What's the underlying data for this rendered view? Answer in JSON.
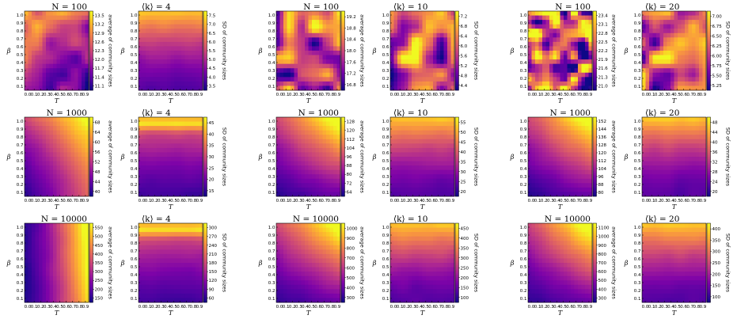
{
  "colormap": "plasma",
  "colors": {
    "low": "#0d0887",
    "mid": "#cc4778",
    "high": "#f0f921",
    "frame": "#000000",
    "background": "#ffffff"
  },
  "chart_data": [
    {
      "type": "heatmap",
      "title_left": "N = 100",
      "title_right": "⟨k⟩ = 4",
      "xlabel": "T",
      "ylabel": "β",
      "x_ticks": [
        "0.0",
        "0.1",
        "0.2",
        "0.3",
        "0.4",
        "0.5",
        "0.6",
        "0.7",
        "0.8",
        "0.9"
      ],
      "y_ticks": [
        "0.1",
        "0.2",
        "0.3",
        "0.4",
        "0.5",
        "0.6",
        "0.7",
        "0.8",
        "0.9",
        "1.0"
      ],
      "panels": [
        {
          "colorbar_label": "average of community sizes",
          "colorbar_ticks": [
            "11.1",
            "11.4",
            "11.7",
            "12.0",
            "12.3",
            "12.6",
            "12.9",
            "13.2",
            "13.5"
          ],
          "pattern": "noisy-high-top-left"
        },
        {
          "colorbar_label": "SD of community sizes",
          "colorbar_ticks": [
            "3.5",
            "4.0",
            "4.5",
            "5.0",
            "5.5",
            "6.0",
            "6.5",
            "7.0",
            "7.5"
          ],
          "pattern": "high-top"
        }
      ]
    },
    {
      "type": "heatmap",
      "title_left": "N = 100",
      "title_right": "⟨k⟩ = 10",
      "xlabel": "T",
      "ylabel": "β",
      "x_ticks": [
        "0.0",
        "0.1",
        "0.2",
        "0.3",
        "0.4",
        "0.5",
        "0.6",
        "0.7",
        "0.8",
        "0.9"
      ],
      "y_ticks": [
        "0.1",
        "0.2",
        "0.3",
        "0.4",
        "0.5",
        "0.6",
        "0.7",
        "0.8",
        "0.9",
        "1.0"
      ],
      "panels": [
        {
          "colorbar_label": "average of community sizes",
          "colorbar_ticks": [
            "16.8",
            "17.2",
            "17.6",
            "18.0",
            "18.4",
            "18.8",
            "19.2"
          ],
          "pattern": "noisy"
        },
        {
          "colorbar_label": "SD of community sizes",
          "colorbar_ticks": [
            "4.4",
            "4.8",
            "5.2",
            "5.6",
            "6.0",
            "6.4",
            "6.8",
            "7.2"
          ],
          "pattern": "noisy"
        }
      ]
    },
    {
      "type": "heatmap",
      "title_left": "N = 100",
      "title_right": "⟨k⟩ = 20",
      "xlabel": "T",
      "ylabel": "β",
      "x_ticks": [
        "0.0",
        "0.1",
        "0.2",
        "0.3",
        "0.4",
        "0.5",
        "0.6",
        "0.7",
        "0.8",
        "0.9"
      ],
      "y_ticks": [
        "0.1",
        "0.2",
        "0.3",
        "0.4",
        "0.5",
        "0.6",
        "0.7",
        "0.8",
        "0.9",
        "1.0"
      ],
      "panels": [
        {
          "colorbar_label": "average of community sizes",
          "colorbar_ticks": [
            "21.0",
            "21.3",
            "21.6",
            "21.9",
            "22.2",
            "22.5",
            "22.8",
            "23.1",
            "23.4"
          ],
          "pattern": "noisy-strong"
        },
        {
          "colorbar_label": "SD of community sizes",
          "colorbar_ticks": [
            "5.25",
            "5.50",
            "5.75",
            "6.00",
            "6.25",
            "6.50",
            "6.75",
            "7.00"
          ],
          "pattern": "noisy"
        }
      ]
    },
    {
      "type": "heatmap",
      "title_left": "N = 1000",
      "title_right": "⟨k⟩ = 4",
      "xlabel": "T",
      "ylabel": "β",
      "x_ticks": [
        "0.0",
        "0.1",
        "0.2",
        "0.3",
        "0.4",
        "0.5",
        "0.6",
        "0.7",
        "0.8",
        "0.9"
      ],
      "y_ticks": [
        "0.1",
        "0.2",
        "0.3",
        "0.4",
        "0.5",
        "0.6",
        "0.7",
        "0.8",
        "0.9",
        "1.0"
      ],
      "panels": [
        {
          "colorbar_label": "average of community sizes",
          "colorbar_ticks": [
            "40",
            "44",
            "48",
            "52",
            "56",
            "60",
            "64",
            "68"
          ],
          "pattern": "high-right-and-top"
        },
        {
          "colorbar_label": "SD of community sizes",
          "colorbar_ticks": [
            "15",
            "20",
            "25",
            "30",
            "35",
            "40",
            "45"
          ],
          "pattern": "high-top-band"
        }
      ]
    },
    {
      "type": "heatmap",
      "title_left": "N = 1000",
      "title_right": "⟨k⟩ = 10",
      "xlabel": "T",
      "ylabel": "β",
      "x_ticks": [
        "0.0",
        "0.1",
        "0.2",
        "0.3",
        "0.4",
        "0.5",
        "0.6",
        "0.7",
        "0.8",
        "0.9"
      ],
      "y_ticks": [
        "0.1",
        "0.2",
        "0.3",
        "0.4",
        "0.5",
        "0.6",
        "0.7",
        "0.8",
        "0.9",
        "1.0"
      ],
      "panels": [
        {
          "colorbar_label": "average of community sizes",
          "colorbar_ticks": [
            "64",
            "72",
            "80",
            "88",
            "96",
            "104",
            "112",
            "120",
            "128"
          ],
          "pattern": "high-top-right"
        },
        {
          "colorbar_label": "SD of community sizes",
          "colorbar_ticks": [
            "20",
            "25",
            "30",
            "35",
            "40",
            "45",
            "50",
            "55"
          ],
          "pattern": "high-top"
        }
      ]
    },
    {
      "type": "heatmap",
      "title_left": "N = 1000",
      "title_right": "⟨k⟩ = 20",
      "xlabel": "T",
      "ylabel": "β",
      "x_ticks": [
        "0.0",
        "0.1",
        "0.2",
        "0.3",
        "0.4",
        "0.5",
        "0.6",
        "0.7",
        "0.8",
        "0.9"
      ],
      "y_ticks": [
        "0.1",
        "0.2",
        "0.3",
        "0.4",
        "0.5",
        "0.6",
        "0.7",
        "0.8",
        "0.9",
        "1.0"
      ],
      "panels": [
        {
          "colorbar_label": "average of community sizes",
          "colorbar_ticks": [
            "80",
            "88",
            "96",
            "104",
            "112",
            "120",
            "128",
            "136",
            "144",
            "152"
          ],
          "pattern": "high-top-right"
        },
        {
          "colorbar_label": "SD of community sizes",
          "colorbar_ticks": [
            "20",
            "24",
            "28",
            "32",
            "36",
            "40",
            "44",
            "48"
          ],
          "pattern": "high-top"
        }
      ]
    },
    {
      "type": "heatmap",
      "title_left": "N = 10000",
      "title_right": "⟨k⟩ = 4",
      "xlabel": "T",
      "ylabel": "β",
      "x_ticks": [
        "0.0",
        "0.1",
        "0.2",
        "0.3",
        "0.4",
        "0.5",
        "0.6",
        "0.7",
        "0.8",
        "0.9"
      ],
      "y_ticks": [
        "0.1",
        "0.2",
        "0.3",
        "0.4",
        "0.5",
        "0.6",
        "0.7",
        "0.8",
        "0.9",
        "1.0"
      ],
      "panels": [
        {
          "colorbar_label": "average of community sizes",
          "colorbar_ticks": [
            "150",
            "200",
            "250",
            "300",
            "350",
            "400",
            "450",
            "500",
            "550"
          ],
          "pattern": "high-right"
        },
        {
          "colorbar_label": "SD of community sizes",
          "colorbar_ticks": [
            "60",
            "90",
            "120",
            "150",
            "180",
            "210",
            "240",
            "270",
            "300"
          ],
          "pattern": "high-top-band"
        }
      ]
    },
    {
      "type": "heatmap",
      "title_left": "N = 10000",
      "title_right": "⟨k⟩ = 10",
      "xlabel": "T",
      "ylabel": "β",
      "x_ticks": [
        "0.0",
        "0.1",
        "0.2",
        "0.3",
        "0.4",
        "0.5",
        "0.6",
        "0.7",
        "0.8",
        "0.9"
      ],
      "y_ticks": [
        "0.1",
        "0.2",
        "0.3",
        "0.4",
        "0.5",
        "0.6",
        "0.7",
        "0.8",
        "0.9",
        "1.0"
      ],
      "panels": [
        {
          "colorbar_label": "average of community sizes",
          "colorbar_ticks": [
            "300",
            "400",
            "500",
            "600",
            "700",
            "800",
            "900",
            "1000"
          ],
          "pattern": "high-top-right"
        },
        {
          "colorbar_label": "SD of community sizes",
          "colorbar_ticks": [
            "100",
            "150",
            "200",
            "250",
            "300",
            "350",
            "400",
            "450"
          ],
          "pattern": "high-top"
        }
      ]
    },
    {
      "type": "heatmap",
      "title_left": "N = 10000",
      "title_right": "⟨k⟩ = 20",
      "xlabel": "T",
      "ylabel": "β",
      "x_ticks": [
        "0.0",
        "0.1",
        "0.2",
        "0.3",
        "0.4",
        "0.5",
        "0.6",
        "0.7",
        "0.8",
        "0.9"
      ],
      "y_ticks": [
        "0.1",
        "0.2",
        "0.3",
        "0.4",
        "0.5",
        "0.6",
        "0.7",
        "0.8",
        "0.9",
        "1.0"
      ],
      "panels": [
        {
          "colorbar_label": "average of community sizes",
          "colorbar_ticks": [
            "300",
            "400",
            "500",
            "600",
            "700",
            "800",
            "900",
            "1000",
            "1100"
          ],
          "pattern": "high-top-right"
        },
        {
          "colorbar_label": "SD of community sizes",
          "colorbar_ticks": [
            "100",
            "150",
            "200",
            "250",
            "300",
            "350",
            "400"
          ],
          "pattern": "high-top"
        }
      ]
    }
  ]
}
